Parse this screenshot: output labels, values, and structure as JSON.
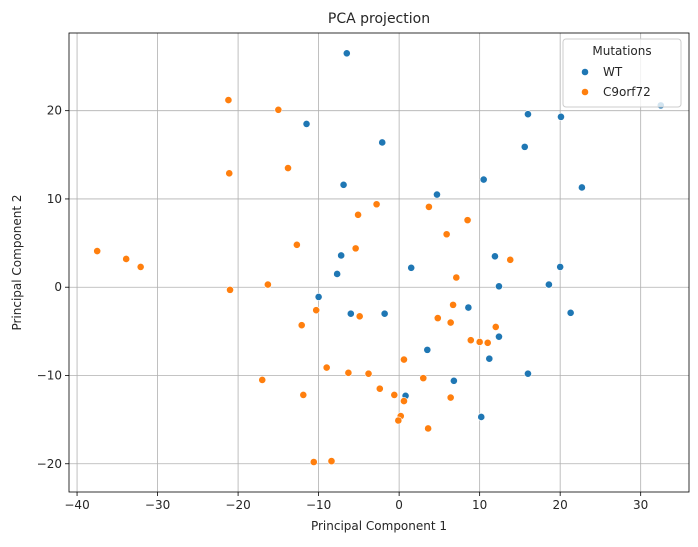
{
  "chart_data": {
    "type": "scatter",
    "title": "PCA projection",
    "xlabel": "Principal Component 1",
    "ylabel": "Principal Component 2",
    "xlim": [
      -41,
      36
    ],
    "ylim": [
      -23.2,
      28.8
    ],
    "xticks": [
      -40,
      -30,
      -20,
      -10,
      0,
      10,
      20,
      30
    ],
    "yticks": [
      -20,
      -10,
      0,
      10,
      20
    ],
    "grid": true,
    "legend": {
      "title": "Mutations",
      "placement": "top-right"
    },
    "series": [
      {
        "name": "WT",
        "color": "#1f77b4",
        "points": [
          [
            -6.5,
            26.5
          ],
          [
            -11.5,
            18.5
          ],
          [
            -2.1,
            16.4
          ],
          [
            -6.9,
            11.6
          ],
          [
            4.7,
            10.5
          ],
          [
            10.5,
            12.2
          ],
          [
            16.0,
            19.6
          ],
          [
            20.1,
            19.3
          ],
          [
            15.6,
            15.9
          ],
          [
            22.7,
            11.3
          ],
          [
            32.5,
            20.6
          ],
          [
            1.5,
            2.2
          ],
          [
            -7.2,
            3.6
          ],
          [
            -7.7,
            1.5
          ],
          [
            -10.0,
            -1.1
          ],
          [
            -6.0,
            -3.0
          ],
          [
            -1.8,
            -3.0
          ],
          [
            11.9,
            3.5
          ],
          [
            12.4,
            0.1
          ],
          [
            18.6,
            0.3
          ],
          [
            20.0,
            2.3
          ],
          [
            21.3,
            -2.9
          ],
          [
            8.6,
            -2.3
          ],
          [
            12.4,
            -5.6
          ],
          [
            11.2,
            -8.1
          ],
          [
            3.5,
            -7.1
          ],
          [
            6.8,
            -10.6
          ],
          [
            0.8,
            -12.3
          ],
          [
            16.0,
            -9.8
          ],
          [
            10.2,
            -14.7
          ]
        ]
      },
      {
        "name": "C9orf72",
        "color": "#ff7f0e",
        "points": [
          [
            -21.2,
            21.2
          ],
          [
            -15.0,
            20.1
          ],
          [
            -21.1,
            12.9
          ],
          [
            -13.8,
            13.5
          ],
          [
            -2.8,
            9.4
          ],
          [
            -5.1,
            8.2
          ],
          [
            -12.7,
            4.8
          ],
          [
            -5.4,
            4.4
          ],
          [
            3.7,
            9.1
          ],
          [
            8.5,
            7.6
          ],
          [
            5.9,
            6.0
          ],
          [
            7.1,
            1.1
          ],
          [
            13.8,
            3.1
          ],
          [
            -37.5,
            4.1
          ],
          [
            -33.9,
            3.2
          ],
          [
            -32.1,
            2.3
          ],
          [
            -16.3,
            0.3
          ],
          [
            -21.0,
            -0.3
          ],
          [
            -10.3,
            -2.6
          ],
          [
            -4.9,
            -3.3
          ],
          [
            -12.1,
            -4.3
          ],
          [
            4.8,
            -3.5
          ],
          [
            6.4,
            -4.0
          ],
          [
            6.7,
            -2.0
          ],
          [
            8.9,
            -6.0
          ],
          [
            10.0,
            -6.2
          ],
          [
            11.0,
            -6.3
          ],
          [
            12.0,
            -4.5
          ],
          [
            0.6,
            -8.2
          ],
          [
            -17.0,
            -10.5
          ],
          [
            -9.0,
            -9.1
          ],
          [
            -6.3,
            -9.7
          ],
          [
            -3.8,
            -9.8
          ],
          [
            3.0,
            -10.3
          ],
          [
            -11.9,
            -12.2
          ],
          [
            -2.4,
            -11.5
          ],
          [
            -0.6,
            -12.2
          ],
          [
            0.6,
            -12.9
          ],
          [
            6.4,
            -12.5
          ],
          [
            0.2,
            -14.6
          ],
          [
            -0.1,
            -15.1
          ],
          [
            3.6,
            -16.0
          ],
          [
            -10.6,
            -19.8
          ],
          [
            -8.4,
            -19.7
          ]
        ]
      }
    ]
  }
}
